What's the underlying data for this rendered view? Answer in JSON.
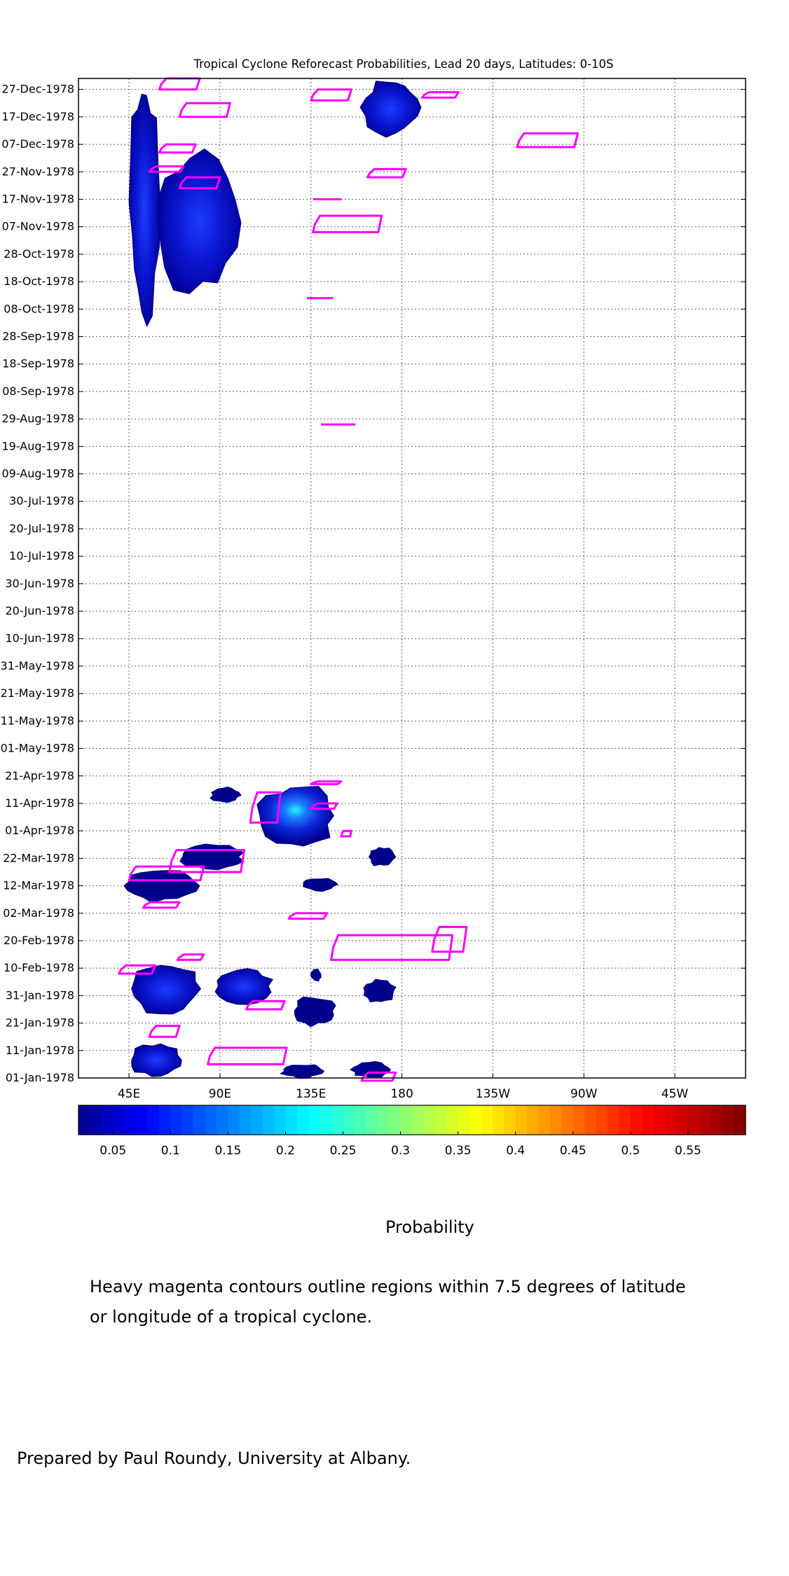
{
  "chart_data": {
    "type": "heatmap",
    "title": "Tropical Cyclone Reforecast Probabilities, Lead 20 days, Latitudes: 0-10S",
    "x_ticks": [
      "45E",
      "90E",
      "135E",
      "180",
      "135W",
      "90W",
      "45W"
    ],
    "y_ticks": [
      "01-Jan-1978",
      "11-Jan-1978",
      "21-Jan-1978",
      "31-Jan-1978",
      "10-Feb-1978",
      "20-Feb-1978",
      "02-Mar-1978",
      "12-Mar-1978",
      "22-Mar-1978",
      "01-Apr-1978",
      "11-Apr-1978",
      "21-Apr-1978",
      "01-May-1978",
      "11-May-1978",
      "21-May-1978",
      "31-May-1978",
      "10-Jun-1978",
      "20-Jun-1978",
      "30-Jun-1978",
      "10-Jul-1978",
      "20-Jul-1978",
      "30-Jul-1978",
      "09-Aug-1978",
      "19-Aug-1978",
      "29-Aug-1978",
      "08-Sep-1978",
      "18-Sep-1978",
      "28-Sep-1978",
      "08-Oct-1978",
      "18-Oct-1978",
      "28-Oct-1978",
      "07-Nov-1978",
      "17-Nov-1978",
      "27-Nov-1978",
      "07-Dec-1978",
      "17-Dec-1978",
      "27-Dec-1978"
    ],
    "xlim": [
      "20E",
      "350E"
    ],
    "ylim": [
      "01-Jan-1978",
      "31-Dec-1978"
    ],
    "grid": true,
    "colorbar": {
      "ticks": [
        "0.05",
        "0.1",
        "0.15",
        "0.2",
        "0.25",
        "0.3",
        "0.35",
        "0.4",
        "0.45",
        "0.5",
        "0.55"
      ],
      "range": [
        0.02,
        0.6
      ],
      "label": "Probability"
    },
    "probability_regions": [
      {
        "lon": [
          45,
          72
        ],
        "date": [
          "01-Jan-1978",
          "14-Jan-1978"
        ],
        "max": 0.1
      },
      {
        "lon": [
          120,
          142
        ],
        "date": [
          "01-Jan-1978",
          "06-Jan-1978"
        ],
        "max": 0.07
      },
      {
        "lon": [
          155,
          175
        ],
        "date": [
          "01-Jan-1978",
          "07-Jan-1978"
        ],
        "max": 0.07
      },
      {
        "lon": [
          45,
          82
        ],
        "date": [
          "24-Jan-1978",
          "12-Feb-1978"
        ],
        "max": 0.1
      },
      {
        "lon": [
          86,
          116
        ],
        "date": [
          "28-Jan-1978",
          "10-Feb-1978"
        ],
        "max": 0.11
      },
      {
        "lon": [
          126,
          148
        ],
        "date": [
          "20-Jan-1978",
          "31-Jan-1978"
        ],
        "max": 0.06
      },
      {
        "lon": [
          135,
          140
        ],
        "date": [
          "05-Feb-1978",
          "10-Feb-1978"
        ],
        "max": 0.05
      },
      {
        "lon": [
          160,
          177
        ],
        "date": [
          "28-Jan-1978",
          "06-Feb-1978"
        ],
        "max": 0.07
      },
      {
        "lon": [
          40,
          80
        ],
        "date": [
          "06-Mar-1978",
          "18-Mar-1978"
        ],
        "max": 0.08
      },
      {
        "lon": [
          70,
          102
        ],
        "date": [
          "18-Mar-1978",
          "27-Mar-1978"
        ],
        "max": 0.08
      },
      {
        "lon": [
          108,
          148
        ],
        "date": [
          "26-Mar-1978",
          "18-Apr-1978"
        ],
        "max": 0.27
      },
      {
        "lon": [
          163,
          177
        ],
        "date": [
          "19-Mar-1978",
          "26-Mar-1978"
        ],
        "max": 0.05
      },
      {
        "lon": [
          130,
          148
        ],
        "date": [
          "10-Mar-1978",
          "15-Mar-1978"
        ],
        "max": 0.05
      },
      {
        "lon": [
          85,
          100
        ],
        "date": [
          "11-Apr-1978",
          "17-Apr-1978"
        ],
        "max": 0.05
      },
      {
        "lon": [
          45,
          60
        ],
        "date": [
          "02-Oct-1978",
          "31-Dec-1978"
        ],
        "max": 0.1
      },
      {
        "lon": [
          57,
          100
        ],
        "date": [
          "13-Oct-1978",
          "05-Dec-1978"
        ],
        "max": 0.12
      },
      {
        "lon": [
          160,
          190
        ],
        "date": [
          "10-Dec-1978",
          "31-Dec-1978"
        ],
        "max": 0.1
      }
    ],
    "cyclone_contours": [
      {
        "lon": [
          40,
          58
        ],
        "date": [
          "08-Feb-1978",
          "11-Feb-1978"
        ]
      },
      {
        "lon": [
          69,
          82
        ],
        "date": [
          "13-Feb-1978",
          "15-Feb-1978"
        ]
      },
      {
        "lon": [
          55,
          70
        ],
        "date": [
          "16-Jan-1978",
          "20-Jan-1978"
        ]
      },
      {
        "lon": [
          84,
          123
        ],
        "date": [
          "06-Jan-1978",
          "12-Jan-1978"
        ]
      },
      {
        "lon": [
          103,
          122
        ],
        "date": [
          "26-Jan-1978",
          "29-Jan-1978"
        ]
      },
      {
        "lon": [
          160,
          177
        ],
        "date": [
          "31-Dec-1977",
          "03-Jan-1978"
        ]
      },
      {
        "lon": [
          145,
          205
        ],
        "date": [
          "13-Feb-1978",
          "22-Feb-1978"
        ]
      },
      {
        "lon": [
          195,
          212
        ],
        "date": [
          "16-Feb-1978",
          "25-Feb-1978"
        ]
      },
      {
        "lon": [
          124,
          143
        ],
        "date": [
          "28-Feb-1978",
          "02-Mar-1978"
        ]
      },
      {
        "lon": [
          52,
          70
        ],
        "date": [
          "04-Mar-1978",
          "06-Mar-1978"
        ]
      },
      {
        "lon": [
          45,
          82
        ],
        "date": [
          "14-Mar-1978",
          "19-Mar-1978"
        ]
      },
      {
        "lon": [
          65,
          102
        ],
        "date": [
          "17-Mar-1978",
          "25-Mar-1978"
        ]
      },
      {
        "lon": [
          105,
          120
        ],
        "date": [
          "04-Apr-1978",
          "15-Apr-1978"
        ]
      },
      {
        "lon": [
          135,
          148
        ],
        "date": [
          "09-Apr-1978",
          "11-Apr-1978"
        ]
      },
      {
        "lon": [
          135,
          150
        ],
        "date": [
          "18-Apr-1978",
          "19-Apr-1978"
        ]
      },
      {
        "lon": [
          150,
          155
        ],
        "date": [
          "30-Mar-1978",
          "01-Apr-1978"
        ]
      },
      {
        "lon": [
          140,
          157
        ],
        "date": [
          "27-Aug-1978",
          "27-Aug-1978"
        ]
      },
      {
        "lon": [
          133,
          146
        ],
        "date": [
          "12-Oct-1978",
          "12-Oct-1978"
        ]
      },
      {
        "lon": [
          136,
          170
        ],
        "date": [
          "05-Nov-1978",
          "11-Nov-1978"
        ]
      },
      {
        "lon": [
          136,
          150
        ],
        "date": [
          "17-Nov-1978",
          "17-Nov-1978"
        ]
      },
      {
        "lon": [
          163,
          182
        ],
        "date": [
          "25-Nov-1978",
          "28-Nov-1978"
        ]
      },
      {
        "lon": [
          70,
          90
        ],
        "date": [
          "21-Nov-1978",
          "25-Nov-1978"
        ]
      },
      {
        "lon": [
          60,
          78
        ],
        "date": [
          "04-Dec-1978",
          "07-Dec-1978"
        ]
      },
      {
        "lon": [
          55,
          72
        ],
        "date": [
          "27-Nov-1978",
          "29-Nov-1978"
        ]
      },
      {
        "lon": [
          237,
          267
        ],
        "date": [
          "06-Dec-1978",
          "11-Dec-1978"
        ]
      },
      {
        "lon": [
          70,
          95
        ],
        "date": [
          "17-Dec-1978",
          "22-Dec-1978"
        ]
      },
      {
        "lon": [
          60,
          80
        ],
        "date": [
          "27-Dec-1978",
          "31-Dec-1978"
        ]
      },
      {
        "lon": [
          135,
          155
        ],
        "date": [
          "23-Dec-1978",
          "27-Dec-1978"
        ]
      },
      {
        "lon": [
          190,
          208
        ],
        "date": [
          "24-Dec-1978",
          "26-Dec-1978"
        ]
      }
    ]
  },
  "notes": {
    "line1": "Heavy magenta contours outline regions within 7.5 degrees of latitude",
    "line2": "or longitude of a tropical cyclone.",
    "credit": "Prepared by Paul Roundy, University at Albany."
  },
  "colors": {
    "contour": "#ff00ff",
    "low_prob": "#00008c"
  }
}
